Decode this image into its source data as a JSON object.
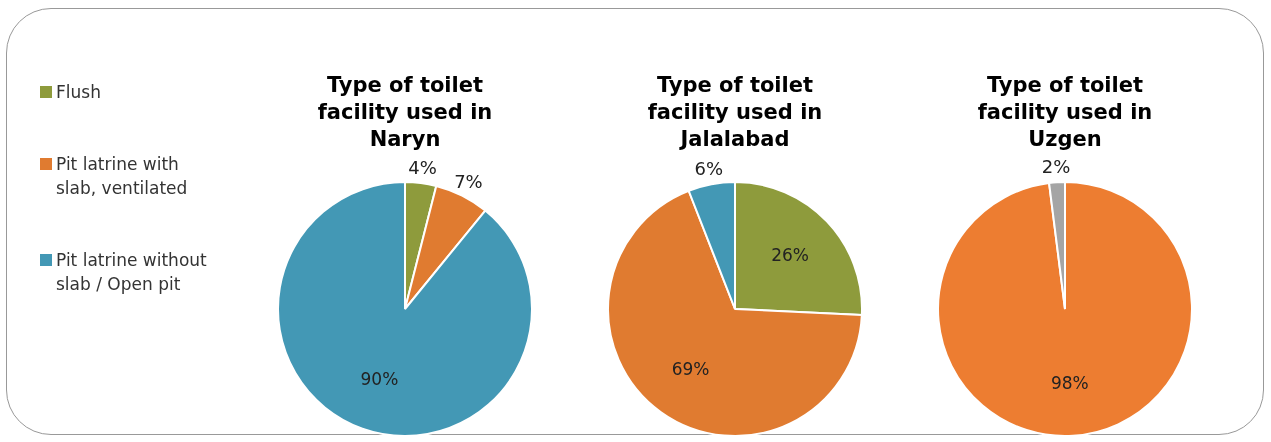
{
  "chart_data": [
    {
      "type": "pie",
      "title": "Type of toilet facility used in Naryn",
      "categories": [
        "Flush",
        "Pit latrine with slab, ventilated",
        "Pit latrine without slab / Open pit"
      ],
      "values": [
        4,
        7,
        90
      ],
      "value_labels": [
        "4%",
        "7%",
        "90%"
      ],
      "colors": [
        "#8e9b3c",
        "#e07b30",
        "#4398b5"
      ],
      "legend": "left"
    },
    {
      "type": "pie",
      "title": "Type of toilet facility used in Jalalabad",
      "categories": [
        null,
        null,
        null
      ],
      "values": [
        26,
        69,
        6
      ],
      "value_labels": [
        "26%",
        "69%",
        "6%"
      ],
      "colors": [
        "#8e9b3c",
        "#e07b30",
        "#4398b5"
      ]
    },
    {
      "type": "pie",
      "title": "Type of toilet facility used in Uzgen",
      "categories": [
        null,
        null
      ],
      "values": [
        98,
        2
      ],
      "value_labels": [
        "98%",
        "2%"
      ],
      "colors": [
        "#ed7d31",
        "#a5a5a5"
      ]
    }
  ]
}
